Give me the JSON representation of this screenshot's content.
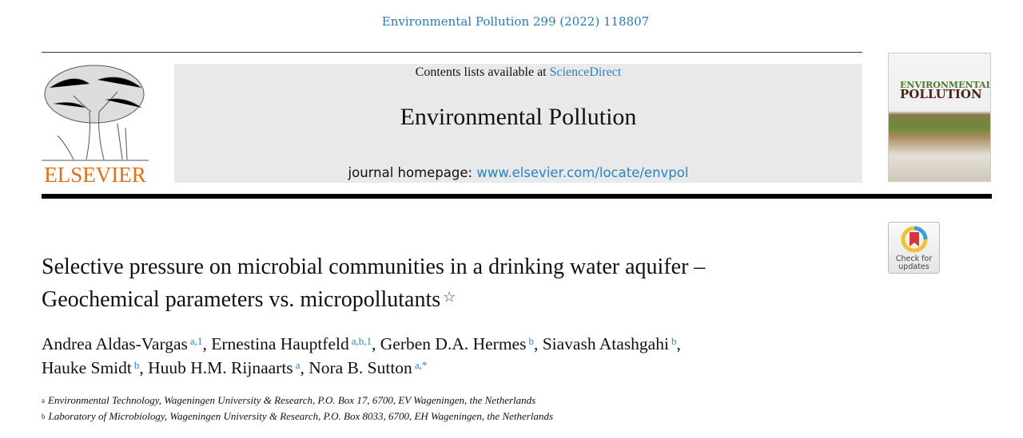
{
  "citation": "Environmental Pollution 299 (2022) 118807",
  "publisher_logo": {
    "text": "ELSEVIER",
    "color": "#e06f1a"
  },
  "banner": {
    "contents_prefix": "Contents lists available at ",
    "contents_link": "ScienceDirect",
    "journal_title": "Environmental Pollution",
    "homepage_prefix": "journal homepage: ",
    "homepage_link": "www.elsevier.com/locate/envpol"
  },
  "cover": {
    "line1": "ENVIRONMENTAL",
    "line2": "POLLUTION"
  },
  "check_updates": {
    "line1": "Check for",
    "line2": "updates"
  },
  "article": {
    "title_line1": "Selective pressure on microbial communities in a drinking water aquifer –",
    "title_line2": "Geochemical parameters vs. micropollutants",
    "title_mark": "☆",
    "authors": [
      {
        "name": "Andrea Aldas-Vargas",
        "sup": "a,1",
        "sep": ", "
      },
      {
        "name": "Ernestina Hauptfeld",
        "sup": "a,b,1",
        "sep": ", "
      },
      {
        "name": "Gerben D.A. Hermes",
        "sup": "b",
        "sep": ", "
      },
      {
        "name": "Siavash Atashgahi",
        "sup": "b",
        "sep": ","
      },
      {
        "name": "Hauke Smidt",
        "sup": "b",
        "sep": ", "
      },
      {
        "name": "Huub H.M. Rijnaarts",
        "sup": "a",
        "sep": ", "
      },
      {
        "name": "Nora B. Sutton",
        "sup": "a,*",
        "sep": ""
      }
    ],
    "affiliations": [
      {
        "mark": "a",
        "text": "Environmental Technology, Wageningen University & Research, P.O. Box 17, 6700, EV Wageningen, the Netherlands"
      },
      {
        "mark": "b",
        "text": "Laboratory of Microbiology, Wageningen University & Research, P.O. Box 8033, 6700, EH Wageningen, the Netherlands"
      }
    ]
  },
  "colors": {
    "link": "#2a82c0",
    "banner_bg": "#e9e9e9"
  }
}
